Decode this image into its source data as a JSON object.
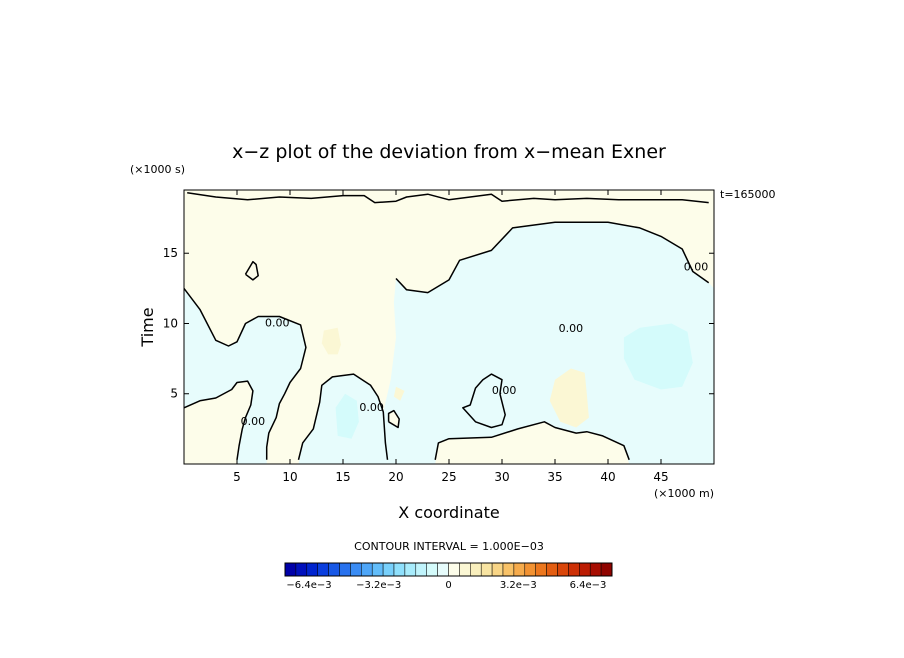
{
  "chart_data": {
    "type": "contour",
    "title": "x−z plot of the deviation from x−mean Exner",
    "xlabel": "X coordinate",
    "ylabel": "Time",
    "x_scale_note": "(×1000 m)",
    "y_scale_note": "(×1000 s)",
    "time_stamp": "t=165000",
    "xlim": [
      0,
      50
    ],
    "ylim": [
      0,
      19.5
    ],
    "x_ticks": [
      5,
      10,
      15,
      20,
      25,
      30,
      35,
      40,
      45
    ],
    "y_ticks": [
      5,
      10,
      15
    ],
    "contour_interval_text": "CONTOUR INTERVAL = 1.000E−03",
    "contour_label": "0.00",
    "zero_contours": [
      [
        [
          0.3,
          19.3
        ],
        [
          3,
          19.0
        ],
        [
          6,
          18.8
        ],
        [
          9,
          19.0
        ],
        [
          12,
          18.9
        ],
        [
          15,
          19.1
        ],
        [
          17,
          19.1
        ],
        [
          18,
          18.6
        ],
        [
          20,
          18.7
        ],
        [
          21,
          19.0
        ],
        [
          23,
          19.2
        ],
        [
          25,
          18.8
        ],
        [
          27,
          19.0
        ],
        [
          29,
          19.2
        ],
        [
          30,
          18.7
        ],
        [
          33,
          18.9
        ],
        [
          35,
          18.8
        ],
        [
          38,
          18.9
        ],
        [
          41,
          18.8
        ],
        [
          44,
          18.8
        ],
        [
          47,
          18.8
        ],
        [
          49.5,
          18.6
        ]
      ],
      [
        [
          49.5,
          12.9
        ],
        [
          48,
          13.7
        ],
        [
          47,
          15.3
        ],
        [
          45,
          16.2
        ],
        [
          43,
          16.8
        ],
        [
          40,
          17.2
        ],
        [
          35,
          17.2
        ],
        [
          31,
          16.8
        ],
        [
          29,
          15.2
        ],
        [
          26,
          14.5
        ],
        [
          25,
          13.1
        ],
        [
          23,
          12.2
        ],
        [
          21,
          12.4
        ],
        [
          20,
          13.2
        ]
      ],
      [
        [
          0,
          12.5
        ],
        [
          1.5,
          11.0
        ],
        [
          3,
          8.8
        ],
        [
          4.2,
          8.4
        ],
        [
          5,
          8.7
        ],
        [
          5.8,
          10.0
        ],
        [
          7,
          10.5
        ],
        [
          9,
          10.5
        ],
        [
          11,
          9.9
        ],
        [
          11.5,
          8.3
        ],
        [
          11,
          6.8
        ],
        [
          10,
          5.8
        ],
        [
          9.5,
          5.0
        ],
        [
          9,
          4.3
        ],
        [
          8.7,
          3.3
        ],
        [
          8,
          2.2
        ],
        [
          7.8,
          1.2
        ],
        [
          7.8,
          0.3
        ]
      ],
      [
        [
          0,
          4.0
        ],
        [
          1.5,
          4.5
        ],
        [
          3,
          4.7
        ],
        [
          4.5,
          5.3
        ],
        [
          5,
          5.8
        ],
        [
          6,
          5.9
        ],
        [
          6.5,
          5.2
        ],
        [
          6.3,
          4.2
        ],
        [
          5.8,
          3.3
        ],
        [
          5.5,
          2.5
        ],
        [
          5.2,
          1.3
        ],
        [
          5,
          0.3
        ]
      ],
      [
        [
          10.8,
          0.3
        ],
        [
          11.2,
          1.5
        ],
        [
          12.2,
          2.5
        ],
        [
          12.8,
          4.4
        ],
        [
          13,
          5.6
        ],
        [
          14,
          6.2
        ],
        [
          16,
          6.4
        ],
        [
          17.6,
          5.6
        ],
        [
          18.3,
          4.8
        ],
        [
          18.8,
          3.7
        ],
        [
          19,
          1.5
        ],
        [
          19.2,
          0.3
        ]
      ],
      [
        [
          19.3,
          3.0
        ],
        [
          20.2,
          2.6
        ],
        [
          20.3,
          3.2
        ],
        [
          19.8,
          3.8
        ],
        [
          19.3,
          3.6
        ],
        [
          19.3,
          3.0
        ]
      ],
      [
        [
          23.7,
          0.3
        ],
        [
          24,
          1.5
        ],
        [
          25,
          1.8
        ],
        [
          29,
          1.9
        ],
        [
          31.5,
          2.5
        ],
        [
          34,
          3.0
        ],
        [
          35,
          2.6
        ],
        [
          37,
          2.2
        ],
        [
          38,
          2.3
        ],
        [
          39.5,
          2.0
        ],
        [
          41.5,
          1.3
        ],
        [
          42,
          0.3
        ]
      ],
      [
        [
          29.8,
          5.0
        ],
        [
          30,
          6.0
        ],
        [
          29,
          6.4
        ],
        [
          28.2,
          6.0
        ],
        [
          27.5,
          5.4
        ],
        [
          27,
          4.2
        ],
        [
          26.3,
          4.0
        ],
        [
          27.5,
          3.0
        ],
        [
          29,
          2.6
        ],
        [
          30,
          2.8
        ],
        [
          30.3,
          3.5
        ],
        [
          29.8,
          5.0
        ]
      ],
      [
        [
          5.8,
          13.5
        ],
        [
          6.5,
          13.1
        ],
        [
          7,
          13.4
        ],
        [
          6.8,
          14.2
        ],
        [
          6.5,
          14.4
        ],
        [
          5.8,
          13.5
        ]
      ]
    ],
    "contour_label_positions": [
      [
        48.3,
        14.0
      ],
      [
        36.5,
        9.6
      ],
      [
        8.8,
        10.0
      ],
      [
        30.2,
        5.2
      ],
      [
        17.7,
        4.0
      ],
      [
        6.5,
        3.0
      ]
    ],
    "shaded_regions": [
      {
        "value": 0.0005,
        "color": "#fdfdea",
        "polygon": [
          [
            0,
            19.5
          ],
          [
            50,
            19.5
          ],
          [
            50,
            0
          ],
          [
            0,
            0
          ]
        ]
      },
      {
        "value": -0.0005,
        "color": "#e7fcfc",
        "polygon": [
          [
            20,
            13.2
          ],
          [
            21,
            12.4
          ],
          [
            23,
            12.2
          ],
          [
            25,
            13.1
          ],
          [
            26,
            14.5
          ],
          [
            29,
            15.2
          ],
          [
            31,
            16.8
          ],
          [
            35,
            17.2
          ],
          [
            40,
            17.2
          ],
          [
            43,
            16.8
          ],
          [
            45,
            16.2
          ],
          [
            47,
            15.3
          ],
          [
            48,
            13.7
          ],
          [
            49.5,
            12.9
          ],
          [
            50,
            12.5
          ],
          [
            50,
            0
          ],
          [
            42,
            0
          ],
          [
            41.5,
            1.3
          ],
          [
            39.5,
            2.0
          ],
          [
            38,
            2.3
          ],
          [
            37,
            2.2
          ],
          [
            35,
            2.6
          ],
          [
            34,
            3.0
          ],
          [
            31.5,
            2.5
          ],
          [
            29,
            1.9
          ],
          [
            25,
            1.8
          ],
          [
            24,
            1.5
          ],
          [
            23.7,
            0
          ],
          [
            19.2,
            0
          ],
          [
            19,
            1.5
          ],
          [
            18.8,
            3.7
          ],
          [
            19.5,
            6
          ],
          [
            20,
            9
          ],
          [
            19.8,
            11.5
          ]
        ]
      },
      {
        "value": -0.0005,
        "color": "#e7fcfc",
        "polygon": [
          [
            0,
            12.5
          ],
          [
            1.5,
            11.0
          ],
          [
            3,
            8.8
          ],
          [
            4.2,
            8.4
          ],
          [
            5,
            8.7
          ],
          [
            5.8,
            10.0
          ],
          [
            7,
            10.5
          ],
          [
            9,
            10.5
          ],
          [
            11,
            9.9
          ],
          [
            11.5,
            8.3
          ],
          [
            11,
            6.8
          ],
          [
            10,
            5.8
          ],
          [
            9.5,
            5.0
          ],
          [
            9,
            4.3
          ],
          [
            8.7,
            3.3
          ],
          [
            8,
            2.2
          ],
          [
            7.8,
            1.2
          ],
          [
            7.8,
            0
          ],
          [
            5,
            0
          ],
          [
            5.2,
            1.3
          ],
          [
            5.5,
            2.5
          ],
          [
            5.8,
            3.3
          ],
          [
            6.3,
            4.2
          ],
          [
            6.5,
            5.2
          ],
          [
            6,
            5.9
          ],
          [
            5,
            5.8
          ],
          [
            4.5,
            5.3
          ],
          [
            3,
            4.7
          ],
          [
            1.5,
            4.5
          ],
          [
            0,
            4.0
          ]
        ]
      },
      {
        "value": -0.0005,
        "color": "#e7fcfc",
        "polygon": [
          [
            10.8,
            0
          ],
          [
            11.2,
            1.5
          ],
          [
            12.2,
            2.5
          ],
          [
            12.8,
            4.4
          ],
          [
            13,
            5.6
          ],
          [
            14,
            6.2
          ],
          [
            16,
            6.4
          ],
          [
            17.6,
            5.6
          ],
          [
            18.3,
            4.8
          ],
          [
            18.8,
            3.7
          ],
          [
            19,
            1.5
          ],
          [
            19.2,
            0
          ]
        ]
      },
      {
        "value": -0.0005,
        "color": "#e7fcfc",
        "polygon": [
          [
            29.8,
            5.0
          ],
          [
            30,
            6.0
          ],
          [
            29,
            6.4
          ],
          [
            28.2,
            6.0
          ],
          [
            27.5,
            5.4
          ],
          [
            27,
            4.2
          ],
          [
            26.3,
            4.0
          ],
          [
            27.5,
            3.0
          ],
          [
            29,
            2.6
          ],
          [
            30,
            2.8
          ],
          [
            30.3,
            3.5
          ]
        ]
      },
      {
        "value": 0.0005,
        "color": "#fdfdea",
        "polygon": [
          [
            19.3,
            3.0
          ],
          [
            20.2,
            2.6
          ],
          [
            20.3,
            3.2
          ],
          [
            19.8,
            3.8
          ],
          [
            19.3,
            3.6
          ]
        ]
      },
      {
        "value": 0.0005,
        "color": "#fdfdea",
        "polygon": [
          [
            30,
            18.7
          ],
          [
            33,
            18.9
          ],
          [
            35,
            18.8
          ],
          [
            38,
            18.9
          ],
          [
            41,
            18.8
          ],
          [
            44,
            18.8
          ],
          [
            47,
            18.8
          ],
          [
            49.5,
            18.6
          ],
          [
            50,
            19.5
          ],
          [
            30,
            19.5
          ]
        ]
      },
      {
        "value": -0.0015,
        "color": "#d4fbfb",
        "polygon": [
          [
            14.5,
            2.0
          ],
          [
            15.8,
            1.8
          ],
          [
            16.5,
            3.0
          ],
          [
            16.3,
            4.5
          ],
          [
            15.2,
            5.0
          ],
          [
            14.3,
            4.0
          ]
        ]
      },
      {
        "value": -0.0015,
        "color": "#d4fbfb",
        "polygon": [
          [
            41.5,
            9.0
          ],
          [
            43,
            9.7
          ],
          [
            46,
            10.0
          ],
          [
            47.5,
            9.4
          ],
          [
            48,
            7.2
          ],
          [
            47,
            5.5
          ],
          [
            45,
            5.3
          ],
          [
            42.5,
            6.0
          ],
          [
            41.5,
            7.5
          ]
        ]
      },
      {
        "value": 0.0015,
        "color": "#fbf7d4",
        "polygon": [
          [
            35,
            6.0
          ],
          [
            36.5,
            6.8
          ],
          [
            37.8,
            6.5
          ],
          [
            38,
            5.0
          ],
          [
            38.2,
            3.3
          ],
          [
            37,
            2.6
          ],
          [
            35.5,
            3.0
          ],
          [
            34.5,
            4.5
          ]
        ]
      },
      {
        "value": 0.0015,
        "color": "#fbf7d4",
        "polygon": [
          [
            13.2,
            9.5
          ],
          [
            14.5,
            9.7
          ],
          [
            14.8,
            8.5
          ],
          [
            14.5,
            7.8
          ],
          [
            13.6,
            7.8
          ],
          [
            13.0,
            8.6
          ]
        ]
      },
      {
        "value": 0.0015,
        "color": "#fbf7d4",
        "polygon": [
          [
            20,
            5.5
          ],
          [
            20.8,
            5.2
          ],
          [
            20.4,
            4.5
          ],
          [
            19.8,
            4.8
          ]
        ]
      }
    ],
    "colorbar": {
      "n_levels": 30,
      "colors": [
        "#0000a8",
        "#0010bd",
        "#0024cf",
        "#0a3ede",
        "#1858e6",
        "#2872ee",
        "#3a8cf4",
        "#4ea6f8",
        "#62bdfa",
        "#78d0fb",
        "#8fe0fc",
        "#a8ecfc",
        "#c0f4fc",
        "#d4fbfb",
        "#e7fcfc",
        "#fdfdea",
        "#fbf7d4",
        "#f9efbd",
        "#f8e4a2",
        "#f8d586",
        "#f8c268",
        "#f6ab4c",
        "#f29232",
        "#ec771e",
        "#e45e12",
        "#da460a",
        "#cd3006",
        "#bc1c03",
        "#a70d02",
        "#8f0400"
      ],
      "tick_labels": [
        "−6.4e−3",
        "−3.2e−3",
        "0",
        "3.2e−3",
        "6.4e−3"
      ],
      "tick_values": [
        -0.0064,
        -0.0032,
        0,
        0.0032,
        0.0064
      ],
      "range": [
        -0.0075,
        0.0075
      ]
    }
  }
}
